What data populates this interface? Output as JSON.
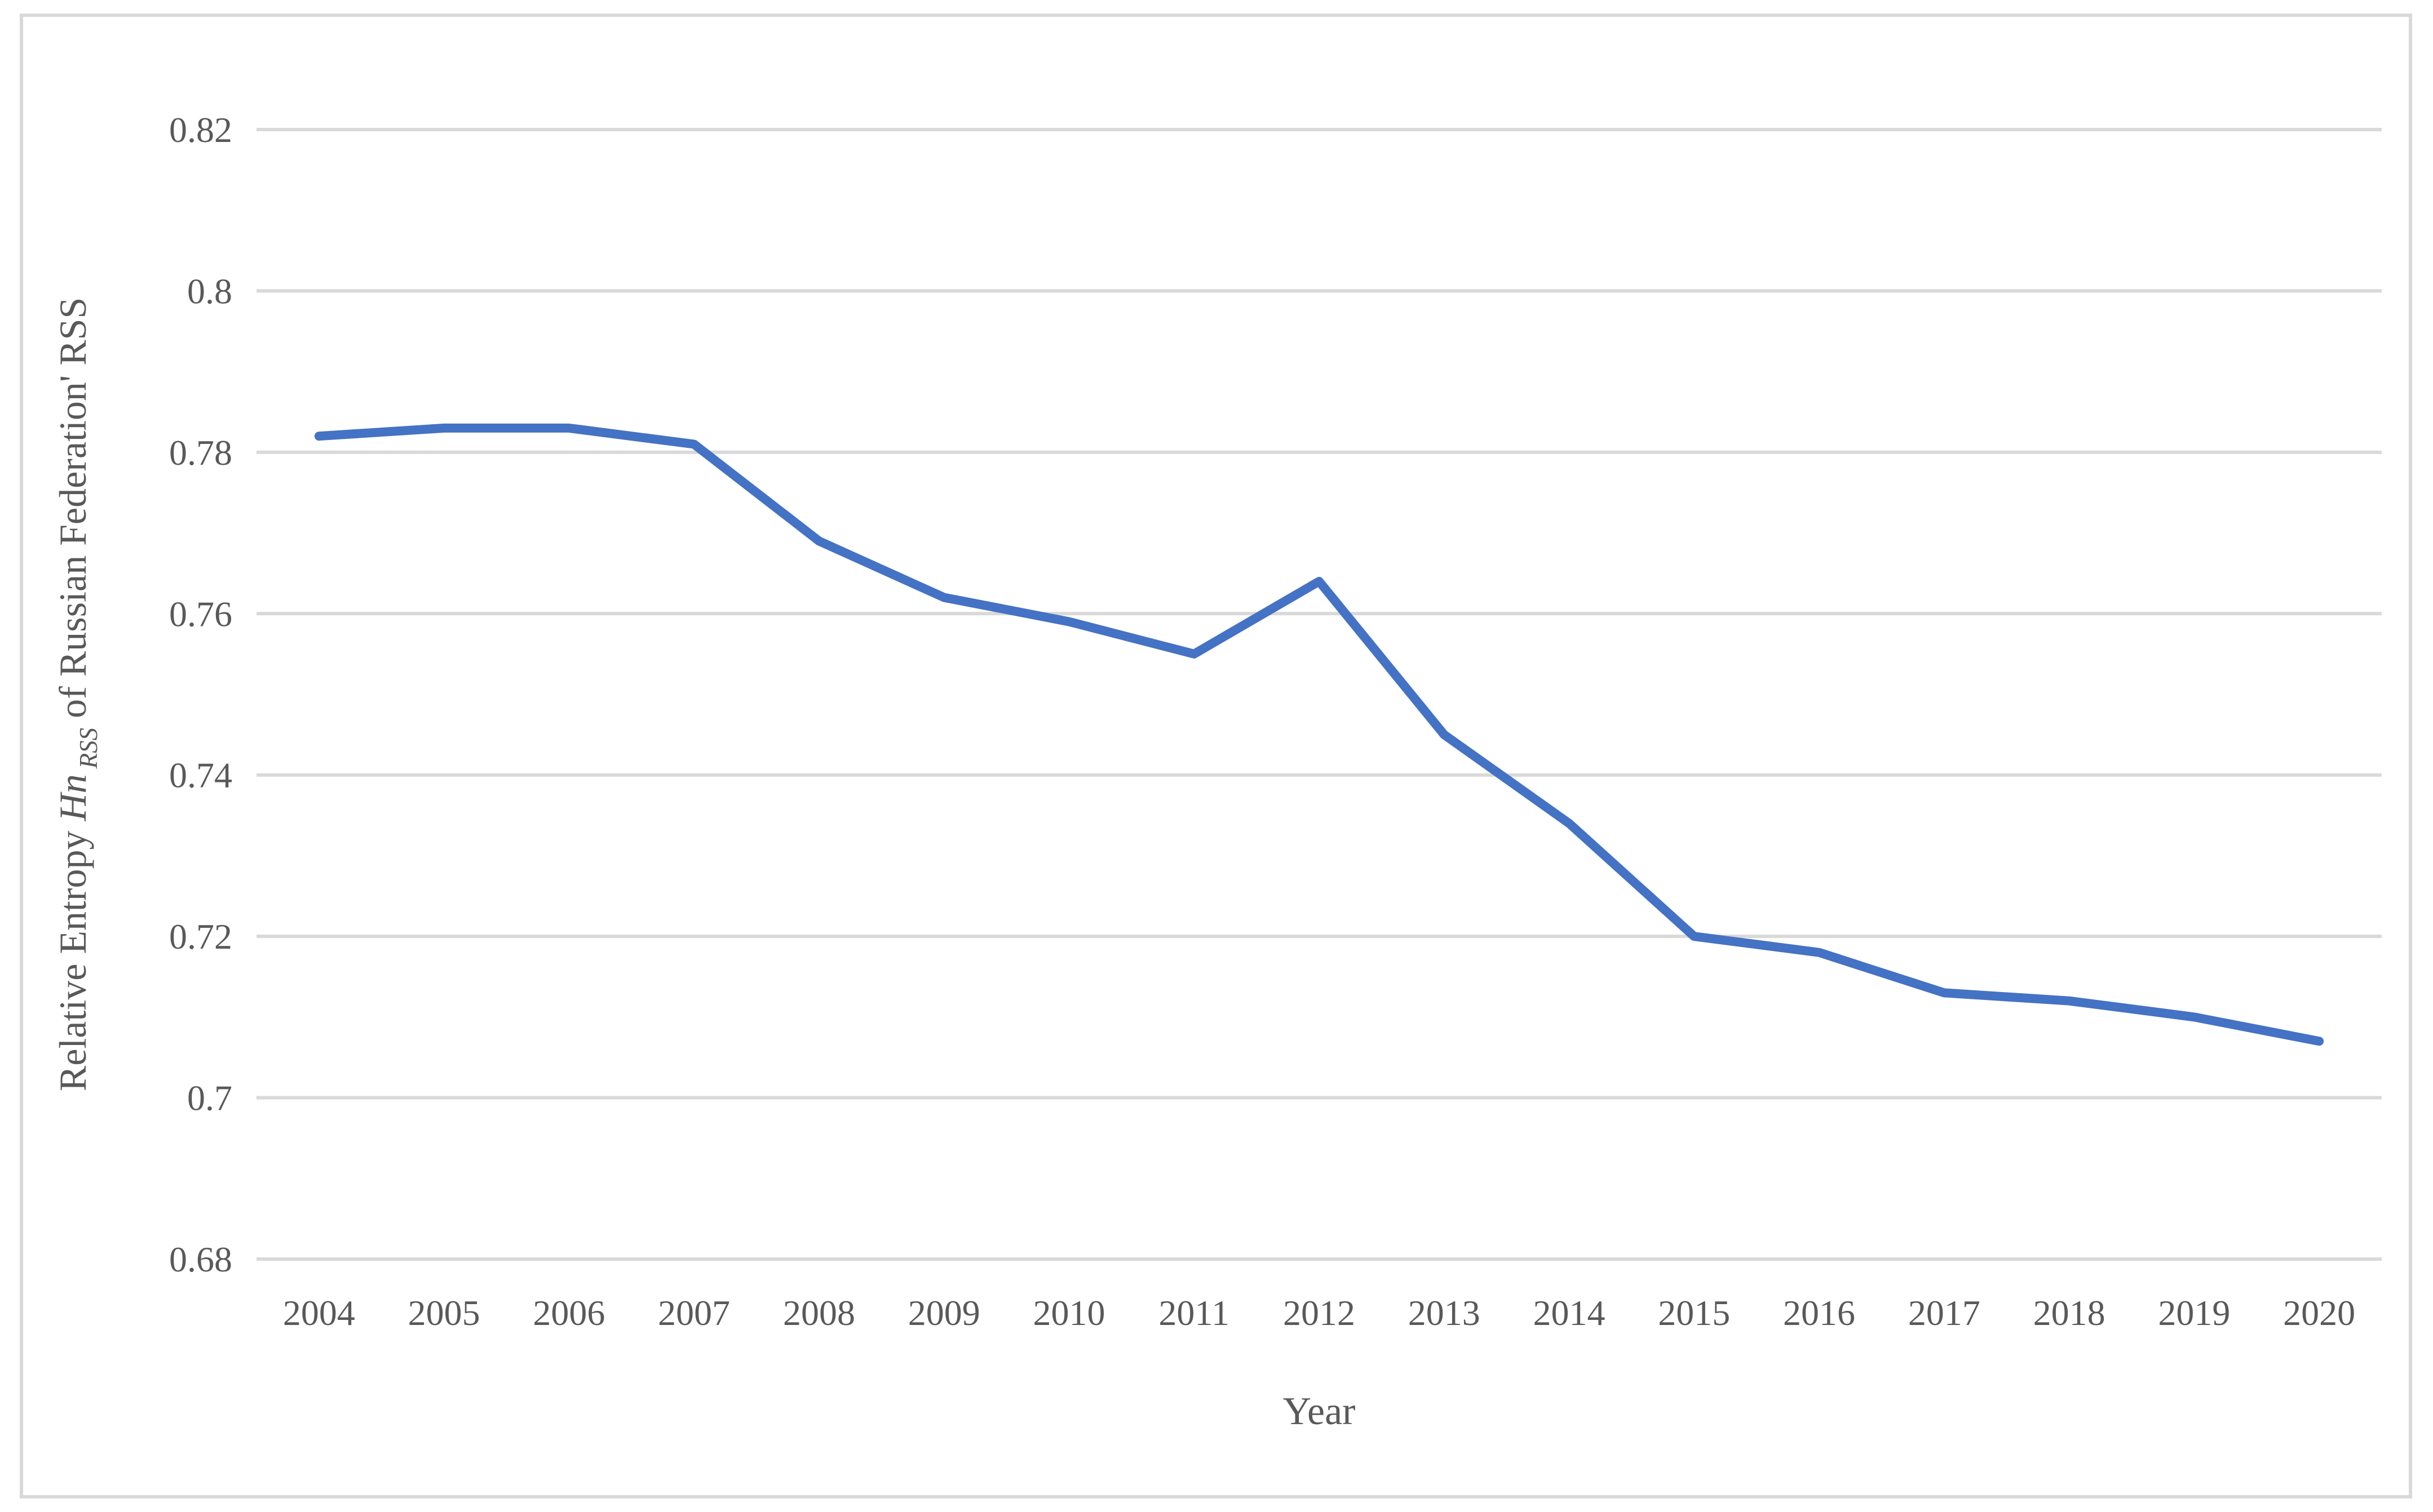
{
  "chart_data": {
    "type": "line",
    "title": "",
    "x": [
      2004,
      2005,
      2006,
      2007,
      2008,
      2009,
      2010,
      2011,
      2012,
      2013,
      2014,
      2015,
      2016,
      2017,
      2018,
      2019,
      2020
    ],
    "series": [
      {
        "name": "Relative Entropy of Russian Federation RSS",
        "values": [
          0.782,
          0.783,
          0.783,
          0.781,
          0.769,
          0.762,
          0.759,
          0.755,
          0.764,
          0.745,
          0.734,
          0.72,
          0.718,
          0.713,
          0.712,
          0.71,
          0.707
        ]
      }
    ],
    "xlabel": "Year",
    "ylabel": "Relative Entropy Hn RSS of Russian Federation' RSS",
    "ylabel_parts": {
      "prefix": "Relative Entropy ",
      "italic_symbol": "Hn",
      "subscript": "RSS",
      "suffix": " of Russian Federation' RSS"
    },
    "ylim": [
      0.68,
      0.82
    ],
    "ytick_labels": [
      "0.82",
      "0.8",
      "0.78",
      "0.76",
      "0.74",
      "0.72",
      "0.7",
      "0.68"
    ],
    "xtick_labels": [
      "2004",
      "2005",
      "2006",
      "2007",
      "2008",
      "2009",
      "2010",
      "2011",
      "2012",
      "2013",
      "2014",
      "2015",
      "2016",
      "2017",
      "2018",
      "2019",
      "2020"
    ],
    "grid": true,
    "legend": "none",
    "colors": {
      "line": "#4472C4",
      "gridline": "#D9D9D9",
      "border": "#D9D9D9",
      "text": "#595959",
      "background": "#FFFFFF"
    }
  }
}
